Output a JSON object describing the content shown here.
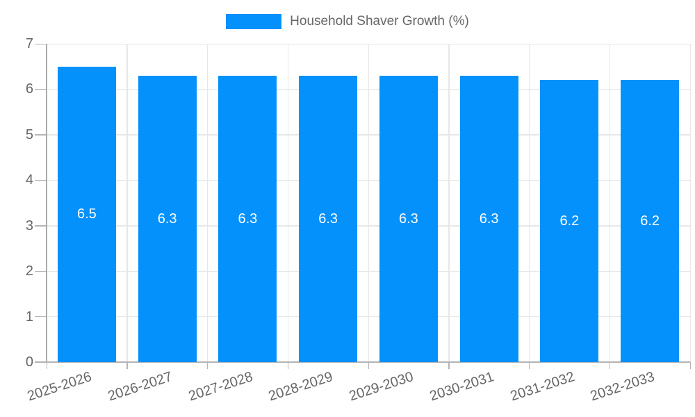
{
  "legend": {
    "label": "Household Shaver Growth (%)"
  },
  "chart_data": {
    "type": "bar",
    "title": "",
    "xlabel": "",
    "ylabel": "",
    "categories": [
      "2025-2026",
      "2026-2027",
      "2027-2028",
      "2028-2029",
      "2029-2030",
      "2030-2031",
      "2031-2032",
      "2032-2033"
    ],
    "series": [
      {
        "name": "Household Shaver Growth (%)",
        "values": [
          6.5,
          6.3,
          6.3,
          6.3,
          6.3,
          6.3,
          6.2,
          6.2
        ],
        "value_labels": [
          "6.5",
          "6.3",
          "6.3",
          "6.3",
          "6.3",
          "6.3",
          "6.2",
          "6.2"
        ]
      }
    ],
    "ylim": [
      0,
      7
    ],
    "yticks": [
      "0",
      "1",
      "2",
      "3",
      "4",
      "5",
      "6",
      "7"
    ],
    "grid": true,
    "legend_position": "top",
    "colors": {
      "bar": "#0591FB",
      "grid": "#E7E7E7",
      "y_axis_line": "#A9A9A9",
      "x_axis_line": "#B3B3B3",
      "tick": "#B5B5B5",
      "axis_text": "#666666",
      "value_label_text": "#FFFFFF",
      "background": "#FFFFFF"
    }
  }
}
